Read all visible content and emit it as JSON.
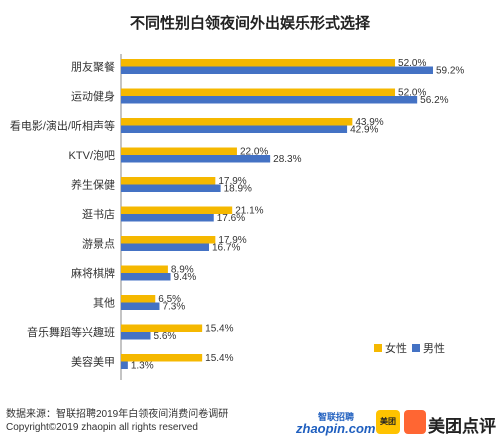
{
  "chart_data": {
    "type": "bar",
    "orientation": "horizontal",
    "title": "不同性别白领夜间外出娱乐形式选择",
    "categories": [
      "朋友聚餐",
      "运动健身",
      "看电影/演出/听相声等",
      "KTV/泡吧",
      "养生保健",
      "逛书店",
      "游景点",
      "麻将棋牌",
      "其他",
      "音乐舞蹈等兴趣班",
      "美容美甲"
    ],
    "series": [
      {
        "name": "女性",
        "color": "#f5b800",
        "values": [
          52.0,
          52.0,
          43.9,
          22.0,
          17.9,
          21.1,
          17.9,
          8.9,
          6.5,
          15.4,
          15.4
        ],
        "labels": [
          "52.0%",
          "52.0%",
          "43.9%",
          "22.0%",
          "17.9%",
          "21.1%",
          "17.9%",
          "8.9%",
          "6.5%",
          "15.4%",
          "15.4%"
        ]
      },
      {
        "name": "男性",
        "color": "#4472c4",
        "values": [
          59.2,
          56.2,
          42.9,
          28.3,
          18.9,
          17.6,
          16.7,
          9.4,
          7.3,
          5.6,
          1.3
        ],
        "labels": [
          "59.2%",
          "56.2%",
          "42.9%",
          "28.3%",
          "18.9%",
          "17.6%",
          "16.7%",
          "9.4%",
          "7.3%",
          "5.6%",
          "1.3%"
        ]
      }
    ],
    "xlim": [
      0,
      60
    ],
    "grid": false,
    "legend": "bottom-right"
  },
  "footer": {
    "source": "数据来源：智联招聘2019年白领夜间消费问卷调研",
    "copyright": "Copyright©2019 zhaopin all rights reserved"
  },
  "logos": {
    "zhaopin_top": "智联招聘",
    "zhaopin_bottom": "zhaopin.com",
    "meituan_box": "美团",
    "meituan_dianping": "美团点评"
  }
}
